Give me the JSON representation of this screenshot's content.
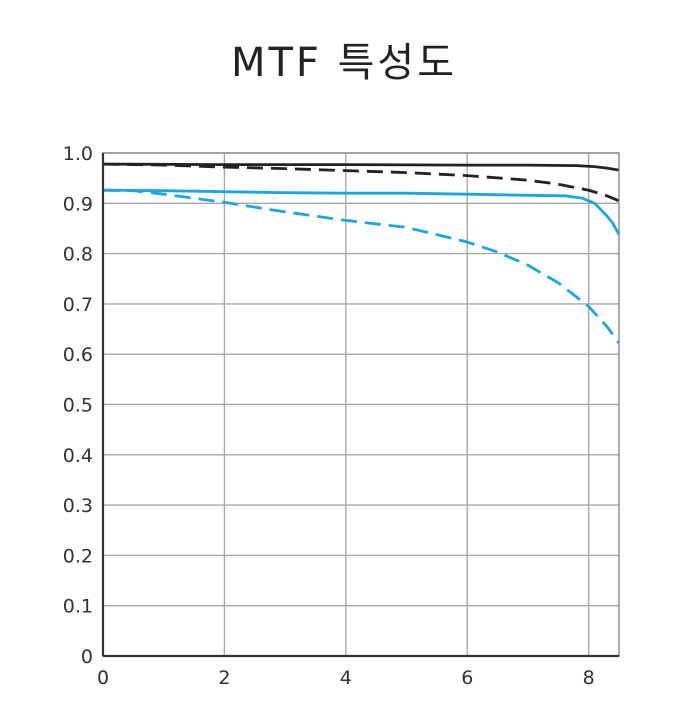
{
  "chart_data": {
    "type": "line",
    "title": "MTF 특성도",
    "xlabel": "",
    "ylabel": "",
    "xlim": [
      0,
      8.5
    ],
    "ylim": [
      0,
      1.0
    ],
    "x_ticks": [
      0,
      2,
      4,
      6,
      8
    ],
    "x_tick_labels": [
      "0",
      "2",
      "4",
      "6",
      "8"
    ],
    "y_ticks": [
      0,
      0.1,
      0.2,
      0.3,
      0.4,
      0.5,
      0.6,
      0.7,
      0.8,
      0.9,
      1.0
    ],
    "y_tick_labels": [
      "0",
      "0.1",
      "0.2",
      "0.3",
      "0.4",
      "0.5",
      "0.6",
      "0.7",
      "0.8",
      "0.9",
      "1.0"
    ],
    "grid": true,
    "legend": "none",
    "series": [
      {
        "color": "#222222",
        "style": "solid",
        "points": [
          [
            0,
            0.978
          ],
          [
            2,
            0.977
          ],
          [
            4,
            0.977
          ],
          [
            6,
            0.976
          ],
          [
            7,
            0.976
          ],
          [
            7.8,
            0.975
          ],
          [
            8.1,
            0.973
          ],
          [
            8.3,
            0.97
          ],
          [
            8.5,
            0.966
          ]
        ]
      },
      {
        "color": "#222222",
        "style": "dashed",
        "points": [
          [
            0,
            0.978
          ],
          [
            1,
            0.976
          ],
          [
            2,
            0.972
          ],
          [
            3,
            0.969
          ],
          [
            4,
            0.965
          ],
          [
            5,
            0.961
          ],
          [
            6,
            0.955
          ],
          [
            7,
            0.946
          ],
          [
            7.5,
            0.938
          ],
          [
            8,
            0.926
          ],
          [
            8.3,
            0.915
          ],
          [
            8.5,
            0.905
          ]
        ]
      },
      {
        "color": "#1aa7e0",
        "style": "solid",
        "points": [
          [
            0,
            0.926
          ],
          [
            1,
            0.925
          ],
          [
            2,
            0.923
          ],
          [
            3,
            0.921
          ],
          [
            4,
            0.92
          ],
          [
            5,
            0.92
          ],
          [
            6,
            0.918
          ],
          [
            7,
            0.916
          ],
          [
            7.6,
            0.915
          ],
          [
            7.9,
            0.91
          ],
          [
            8.1,
            0.9
          ],
          [
            8.3,
            0.875
          ],
          [
            8.4,
            0.86
          ],
          [
            8.5,
            0.838
          ]
        ]
      },
      {
        "color": "#1aa7e0",
        "style": "dashed",
        "points": [
          [
            0,
            0.926
          ],
          [
            0.5,
            0.925
          ],
          [
            1,
            0.918
          ],
          [
            2,
            0.902
          ],
          [
            3,
            0.883
          ],
          [
            4,
            0.866
          ],
          [
            5,
            0.852
          ],
          [
            6,
            0.823
          ],
          [
            6.5,
            0.803
          ],
          [
            7,
            0.777
          ],
          [
            7.5,
            0.742
          ],
          [
            8,
            0.695
          ],
          [
            8.3,
            0.655
          ],
          [
            8.5,
            0.622
          ]
        ]
      }
    ]
  }
}
